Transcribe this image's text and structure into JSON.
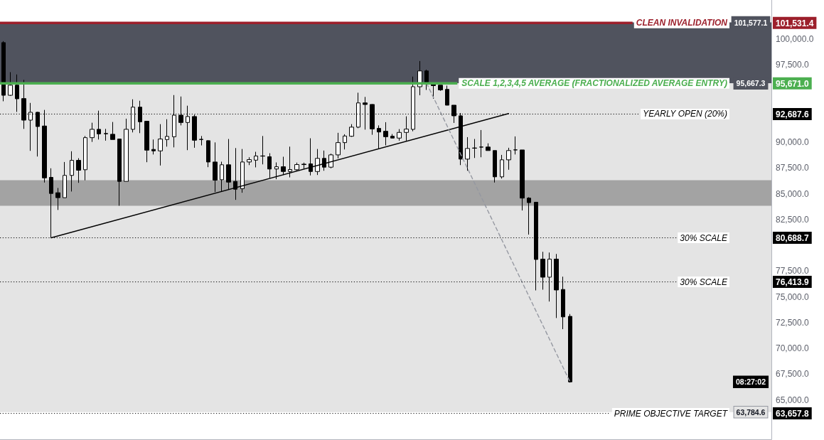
{
  "chart_data": {
    "type": "candlestick",
    "categories": [
      null,
      null,
      null,
      null,
      null,
      null,
      null,
      null,
      null,
      null,
      null,
      null,
      null,
      null,
      null,
      null,
      null,
      null,
      null,
      null,
      null,
      null,
      null,
      null,
      null,
      null,
      null,
      null,
      null,
      null,
      null,
      null,
      null,
      null,
      null,
      null,
      null,
      null,
      null,
      null,
      null,
      null,
      null,
      null,
      null,
      null,
      null,
      null,
      null,
      null,
      null,
      null,
      null,
      null,
      null,
      null,
      null,
      null,
      null,
      null,
      null,
      null,
      null,
      null,
      null,
      null,
      null,
      null,
      null,
      null,
      null,
      null,
      null,
      null,
      null,
      null,
      null,
      null,
      null,
      null,
      null,
      null,
      null,
      null,
      null,
      null,
      null,
      null,
      null,
      null,
      null,
      null,
      null,
      null,
      null,
      null,
      null,
      null,
      null,
      null,
      null,
      null,
      null,
      null,
      null,
      null,
      null,
      null,
      null,
      null,
      null,
      null,
      null
    ],
    "ohlc": [
      [
        99620,
        99760,
        93930,
        94510
      ],
      [
        94510,
        96750,
        94450,
        95490
      ],
      [
        95490,
        96530,
        92900,
        94170
      ],
      [
        94190,
        96000,
        91250,
        92100
      ],
      [
        92100,
        93770,
        89120,
        92860
      ],
      [
        92860,
        92900,
        88570,
        91480
      ],
      [
        91530,
        93090,
        86050,
        86500
      ],
      [
        86550,
        87430,
        80690,
        84990
      ],
      [
        85060,
        85520,
        83390,
        84580
      ],
      [
        84580,
        88040,
        84580,
        86740
      ],
      [
        86740,
        89080,
        85180,
        88200
      ],
      [
        88200,
        88410,
        86020,
        87240
      ],
      [
        87290,
        90560,
        86260,
        90400
      ],
      [
        90400,
        91850,
        89990,
        91210
      ],
      [
        91210,
        93020,
        90220,
        90770
      ],
      [
        90800,
        91250,
        90110,
        90780
      ],
      [
        90730,
        91920,
        90220,
        90220
      ],
      [
        90270,
        90300,
        83800,
        86160
      ],
      [
        86160,
        92240,
        86160,
        91210
      ],
      [
        91210,
        94120,
        90910,
        93360
      ],
      [
        93360,
        93980,
        90840,
        91940
      ],
      [
        91990,
        92000,
        88020,
        89190
      ],
      [
        89260,
        90220,
        88770,
        89120
      ],
      [
        89120,
        91710,
        87700,
        90270
      ],
      [
        90220,
        92190,
        89530,
        90520
      ],
      [
        90490,
        94530,
        89460,
        92580
      ],
      [
        92580,
        94390,
        91590,
        91870
      ],
      [
        91870,
        93500,
        89190,
        92450
      ],
      [
        92450,
        92630,
        89420,
        90150
      ],
      [
        90240,
        90560,
        89650,
        90220
      ],
      [
        90110,
        90150,
        87540,
        88040
      ],
      [
        88040,
        89940,
        85130,
        86280
      ],
      [
        86320,
        88070,
        85180,
        87770
      ],
      [
        87770,
        90270,
        85360,
        86090
      ],
      [
        86160,
        89390,
        84370,
        85400
      ],
      [
        85450,
        89300,
        85060,
        88040
      ],
      [
        88040,
        88500,
        87740,
        88270
      ],
      [
        88220,
        89030,
        87520,
        88620
      ],
      [
        88630,
        90560,
        87810,
        88610
      ],
      [
        88550,
        88890,
        86480,
        87360
      ],
      [
        87360,
        88000,
        86370,
        87580
      ],
      [
        87580,
        88550,
        86780,
        87120
      ],
      [
        87120,
        89530,
        86550,
        87310
      ],
      [
        87290,
        87980,
        87190,
        87790
      ],
      [
        87830,
        87980,
        87360,
        87790
      ],
      [
        87860,
        90340,
        86740,
        87120
      ],
      [
        87120,
        89300,
        86780,
        88390
      ],
      [
        88390,
        89150,
        87190,
        87540
      ],
      [
        87540,
        88850,
        87430,
        88730
      ],
      [
        88730,
        90870,
        88390,
        89920
      ],
      [
        89920,
        90730,
        89260,
        90560
      ],
      [
        90540,
        91710,
        90480,
        91420
      ],
      [
        91420,
        94760,
        91320,
        93770
      ],
      [
        93770,
        94350,
        91180,
        93620
      ],
      [
        93620,
        93650,
        90680,
        91250
      ],
      [
        91300,
        91590,
        89300,
        90950
      ],
      [
        91020,
        91900,
        89650,
        90490
      ],
      [
        90540,
        90750,
        90360,
        90360
      ],
      [
        90360,
        91230,
        90110,
        90910
      ],
      [
        90910,
        92470,
        90110,
        91230
      ],
      [
        91210,
        96320,
        91020,
        95340
      ],
      [
        95340,
        97830,
        94510,
        96870
      ],
      [
        96870,
        97000,
        95030,
        95720
      ],
      [
        95540,
        95720,
        94170,
        95450
      ],
      [
        95490,
        95490,
        94940,
        95030
      ],
      [
        95080,
        95450,
        93550,
        93550
      ],
      [
        93550,
        93550,
        91830,
        92520
      ],
      [
        92520,
        92790,
        87740,
        88320
      ],
      [
        88320,
        90450,
        87190,
        89350
      ],
      [
        89400,
        90270,
        88430,
        89380
      ],
      [
        89490,
        91140,
        88500,
        89480
      ],
      [
        89490,
        89850,
        89150,
        89150
      ],
      [
        89150,
        89150,
        86050,
        86600
      ],
      [
        86600,
        88730,
        86430,
        88250
      ],
      [
        88250,
        89420,
        87290,
        89150
      ],
      [
        89210,
        90520,
        88770,
        89220
      ],
      [
        89210,
        89210,
        83340,
        84540
      ],
      [
        84540,
        84630,
        81000,
        84100
      ],
      [
        84140,
        84140,
        75590,
        78590
      ],
      [
        78620,
        79330,
        75660,
        76870
      ],
      [
        76870,
        79260,
        74510,
        78620
      ],
      [
        78620,
        79120,
        72910,
        75630
      ],
      [
        75680,
        76920,
        71830,
        73020
      ],
      [
        73070,
        73300,
        66650,
        66720
      ],
      null,
      null,
      null,
      null,
      null,
      null,
      null,
      null,
      null,
      null,
      null,
      null,
      null,
      null,
      null,
      null,
      null,
      null,
      null,
      null,
      null,
      null,
      null,
      null,
      null,
      null,
      null,
      null,
      null
    ],
    "color": "#000000",
    "series": [
      {
        "type": "line",
        "color": "#000000",
        "values": [
          null,
          null,
          null,
          null,
          null,
          null,
          null,
          80690,
          null,
          null,
          null,
          null,
          null,
          null,
          null,
          null,
          null,
          null,
          null,
          null,
          null,
          null,
          null,
          null,
          null,
          null,
          null,
          null,
          null,
          null,
          null,
          null,
          null,
          null,
          null,
          null,
          null,
          null,
          null,
          null,
          null,
          null,
          null,
          null,
          null,
          null,
          null,
          null,
          null,
          null,
          null,
          null,
          null,
          null,
          null,
          null,
          null,
          null,
          null,
          null,
          null,
          null,
          null,
          null,
          null,
          null,
          null,
          null,
          null,
          null,
          null,
          null,
          null,
          null,
          92740,
          null,
          null,
          null,
          null,
          null,
          null,
          null,
          null,
          null,
          null,
          null,
          null,
          null,
          null,
          null,
          null,
          null,
          null,
          null,
          null,
          null,
          null,
          null,
          null,
          null,
          null,
          null,
          null,
          null,
          null,
          null,
          null,
          null,
          null,
          null,
          null,
          null,
          null
        ]
      },
      {
        "type": "line",
        "color": "#9598a1",
        "line_style": "dashed",
        "values": [
          null,
          null,
          null,
          null,
          null,
          null,
          null,
          null,
          null,
          null,
          null,
          null,
          null,
          null,
          null,
          null,
          null,
          null,
          null,
          null,
          null,
          null,
          null,
          null,
          null,
          null,
          null,
          null,
          null,
          null,
          null,
          null,
          null,
          null,
          null,
          null,
          null,
          null,
          null,
          null,
          null,
          null,
          null,
          null,
          null,
          null,
          null,
          null,
          null,
          null,
          null,
          null,
          null,
          null,
          null,
          null,
          null,
          null,
          null,
          null,
          null,
          null,
          95670,
          null,
          null,
          null,
          null,
          null,
          null,
          null,
          null,
          null,
          null,
          null,
          null,
          null,
          null,
          null,
          null,
          null,
          null,
          null,
          null,
          66720,
          null,
          null,
          null,
          null,
          null,
          null,
          null,
          null,
          null,
          null,
          null,
          null,
          null,
          null,
          null,
          null,
          null,
          null,
          null,
          null,
          null,
          null,
          null,
          null,
          null,
          null,
          null,
          null,
          null
        ]
      }
    ],
    "ylim": [
      61150,
      103750
    ],
    "yticks": [
      {
        "value": 101531.4,
        "label": "101,531.4"
      },
      {
        "value": 100000,
        "label": "100,000.0"
      },
      {
        "value": 97500,
        "label": "97,500.0"
      },
      {
        "value": 95671.0,
        "label": "95,671.0"
      },
      {
        "value": 92687.6,
        "label": "92,687.6"
      },
      {
        "value": 90000,
        "label": "90,000.0"
      },
      {
        "value": 87500,
        "label": "87,500.0"
      },
      {
        "value": 85000,
        "label": "85,000.0"
      },
      {
        "value": 82500,
        "label": "82,500.0"
      },
      {
        "value": 80688.7,
        "label": "80,688.7"
      },
      {
        "value": 77500,
        "label": "77,500.0"
      },
      {
        "value": 76413.9,
        "label": "76,413.9"
      },
      {
        "value": 75000,
        "label": "75,000.0"
      },
      {
        "value": 72500,
        "label": "72,500.0"
      },
      {
        "value": 70000,
        "label": "70,000.0"
      },
      {
        "value": 67500,
        "label": "67,500.0"
      },
      {
        "value": 65000,
        "label": "65,000.0"
      },
      {
        "value": 63657.8,
        "label": "63,657.8"
      }
    ],
    "tick_labels": "y",
    "ref_lines": [
      {
        "axis": "y",
        "value": 101531.4,
        "label": "CLEAN INVALIDATION",
        "color": "#9c1f2b",
        "line_style": "solid"
      },
      {
        "axis": "y",
        "value": 95671.0,
        "label": "SCALE 1,2,3,4,5 AVERAGE (FRACTIONALIZED AVERAGE ENTRY)",
        "color": "#4caf50",
        "line_style": "solid"
      },
      {
        "axis": "y",
        "value": 92687.6,
        "label": "YEARLY OPEN (20%)",
        "color": "#000000",
        "line_style": "dotted"
      },
      {
        "axis": "y",
        "value": 80688.7,
        "label": "30% SCALE",
        "color": "#000000",
        "line_style": "dotted"
      },
      {
        "axis": "y",
        "value": 76413.9,
        "label": "30% SCALE",
        "color": "#000000",
        "line_style": "dotted"
      },
      {
        "axis": "y",
        "value": 63657.8,
        "label": "PRIME OBJECTIVE TARGET",
        "color": "#000000",
        "line_style": "dotted"
      }
    ],
    "bands": [
      {
        "axis": "y",
        "from": 95667.3,
        "to": 101577.1,
        "color": "#50535e"
      },
      {
        "axis": "y",
        "from": 63784.6,
        "to": 95667.3,
        "color": "#e4e4e4"
      },
      {
        "axis": "y",
        "from": 83800,
        "to": 86280,
        "color": "#a3a3a3"
      }
    ],
    "annotations": [
      {
        "text": "101,577.1",
        "y": 101577.1
      },
      {
        "text": "95,667.3",
        "y": 95667.3
      },
      {
        "text": "63,784.6",
        "y": 63784.6
      },
      "08:27:02"
    ]
  }
}
